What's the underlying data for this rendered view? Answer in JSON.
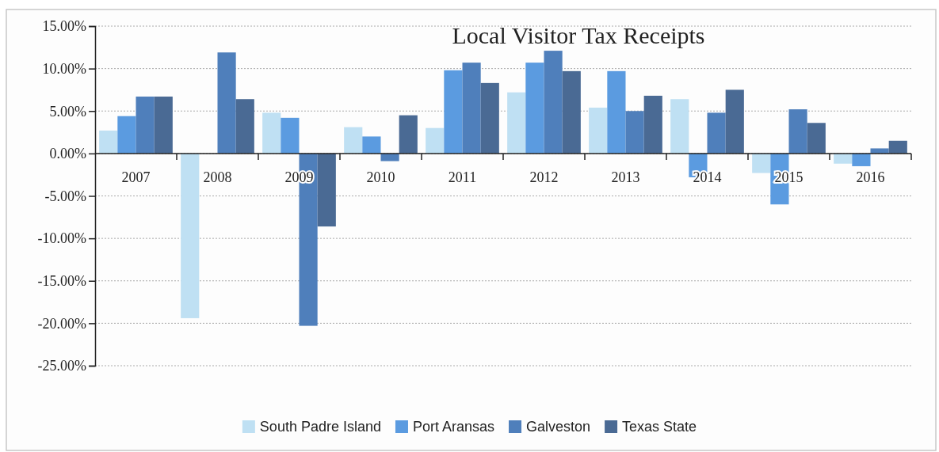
{
  "chart_data": {
    "type": "bar",
    "title": "Local Visitor Tax Receipts",
    "categories": [
      "2007",
      "2008",
      "2009",
      "2010",
      "2011",
      "2012",
      "2013",
      "2014",
      "2015",
      "2016"
    ],
    "series": [
      {
        "name": "South Padre Island",
        "color": "#bfe0f3",
        "values": [
          2.7,
          -19.4,
          4.8,
          3.1,
          3.0,
          7.2,
          5.4,
          6.4,
          -2.3,
          -1.2
        ]
      },
      {
        "name": "Port Aransas",
        "color": "#5b9be0",
        "values": [
          4.4,
          null,
          4.2,
          2.0,
          9.8,
          10.7,
          9.7,
          -2.8,
          -6.0,
          -1.5
        ]
      },
      {
        "name": "Galveston",
        "color": "#4f7fbb",
        "values": [
          6.7,
          11.9,
          -20.3,
          -0.9,
          10.7,
          12.1,
          5.0,
          4.8,
          5.2,
          0.6
        ]
      },
      {
        "name": "Texas State",
        "color": "#4a6a94",
        "values": [
          6.7,
          6.4,
          -8.6,
          4.5,
          8.3,
          9.7,
          6.8,
          7.5,
          3.6,
          1.5
        ]
      }
    ],
    "ylim": [
      -25,
      15
    ],
    "yticks": [
      {
        "value": -25,
        "label": "-25.00%"
      },
      {
        "value": -20,
        "label": "-20.00%"
      },
      {
        "value": -15,
        "label": "-15.00%"
      },
      {
        "value": -10,
        "label": "-10.00%"
      },
      {
        "value": -5,
        "label": "-5.00%"
      },
      {
        "value": 0,
        "label": "0.00%"
      },
      {
        "value": 5,
        "label": "5.00%"
      },
      {
        "value": 10,
        "label": "10.00%"
      },
      {
        "value": 15,
        "label": "15.00%"
      }
    ],
    "grid": "y",
    "legend": "bottom"
  }
}
